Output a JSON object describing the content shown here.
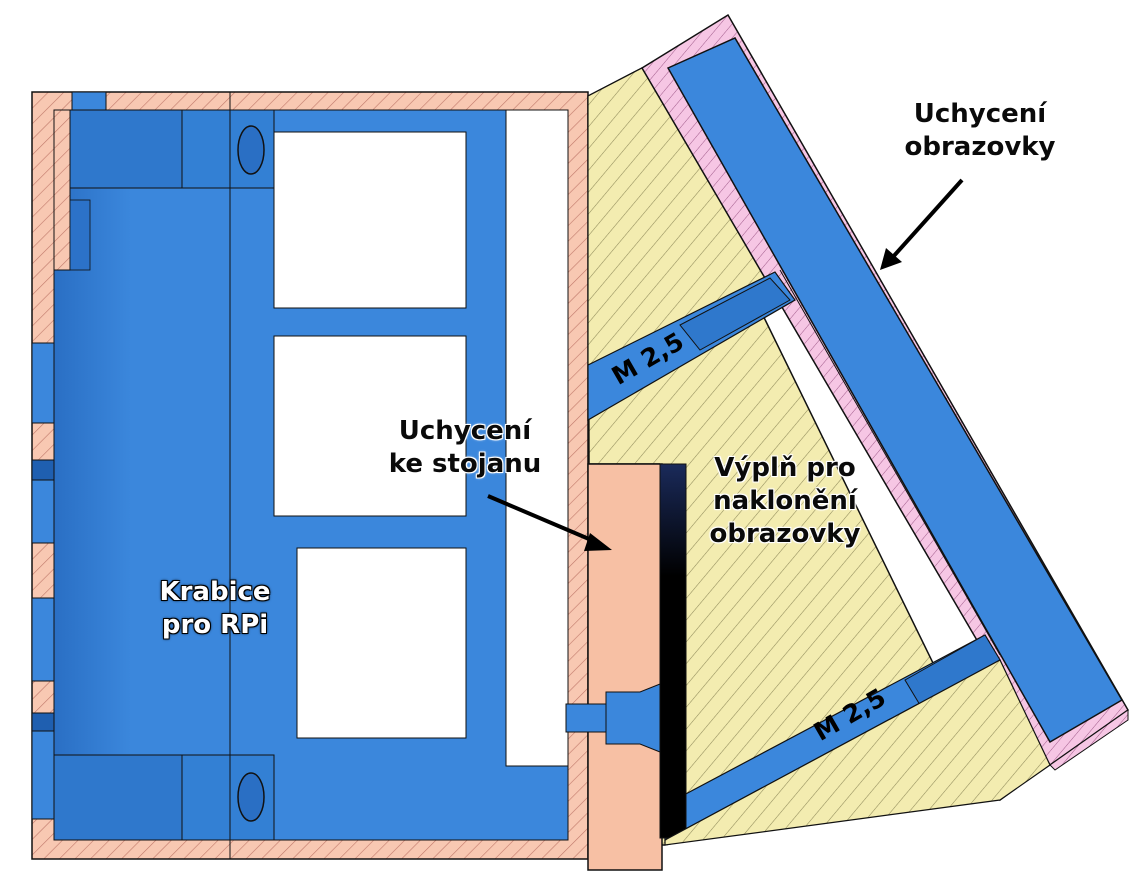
{
  "labels": {
    "screen_mount": "Uchycení\nobrazovky",
    "stand_mount": "Uchycení\nke stojanu",
    "tilt_filler": "Výplň pro\nnaklonění\nobrazovky",
    "rpi_box": "Krabice\npro RPi",
    "screw_upper": "M 2,5",
    "screw_lower": "M 2,5"
  },
  "colors": {
    "blue": "#3b87dc",
    "blue_dark": "#1f5fb0",
    "salmon": "#f7c4ad",
    "yellow": "#f3ecb0",
    "pink": "#f4bfe0",
    "outline": "#111111"
  }
}
